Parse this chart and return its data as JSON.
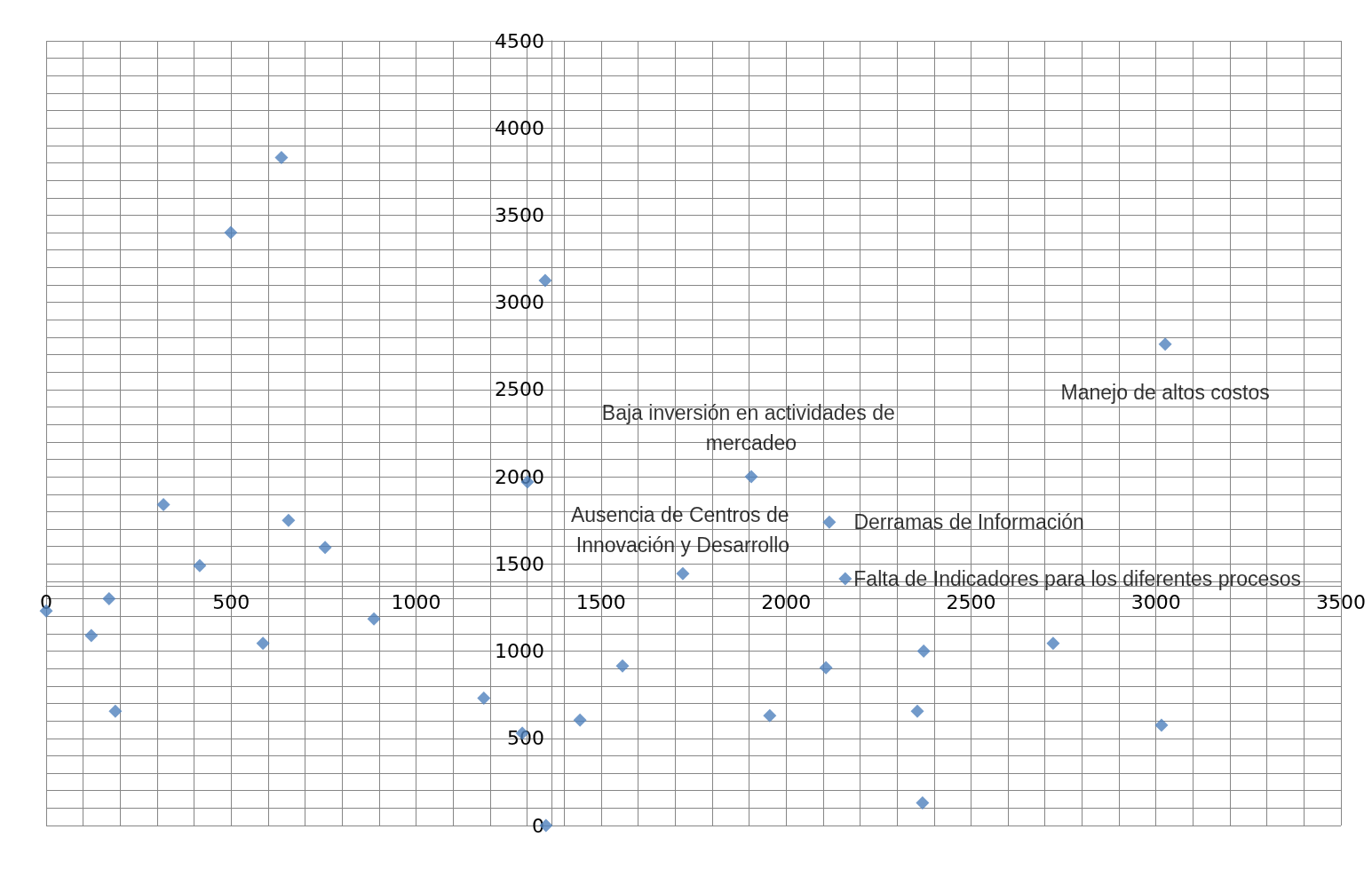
{
  "chart_data": {
    "type": "scatter",
    "marker": "diamond",
    "grid": true,
    "xlim": [
      0,
      3500
    ],
    "xticks": [
      0,
      500,
      1000,
      1500,
      2000,
      2500,
      3000,
      3500
    ],
    "ylim": [
      0,
      4500
    ],
    "yticks": [
      0,
      500,
      1000,
      1500,
      2000,
      2500,
      3000,
      3500,
      4000,
      4500
    ],
    "series": [
      {
        "color": "#4f81bd",
        "x": [
          0,
          122,
          170,
          187,
          317,
          415,
          499,
          586,
          636,
          655,
          754,
          886,
          1183,
          1287,
          1301,
          1349,
          1351,
          1443,
          1558,
          1721,
          1906,
          1956,
          2108,
          2117,
          2160,
          2355,
          2369,
          2372,
          2722,
          3015,
          3025
        ],
        "values": [
          1230,
          1090,
          1300,
          655,
          1840,
          1490,
          3400,
          1045,
          3830,
          1750,
          1595,
          1185,
          730,
          530,
          1970,
          3125,
          0,
          605,
          915,
          1445,
          2000,
          630,
          905,
          1740,
          1415,
          655,
          130,
          1000,
          1045,
          575,
          2760
        ]
      }
    ],
    "annotations": [
      {
        "text": "Baja inversión en actividades de mercadeo",
        "x": 1906,
        "y": 2000
      },
      {
        "text": "Manejo de altos costos",
        "x": 3025,
        "y": 2760
      },
      {
        "text": "Derramas de Información",
        "x": 2117,
        "y": 1740
      },
      {
        "text": "Falta de Indicadores para los diferentes procesos",
        "x": 2160,
        "y": 1415
      },
      {
        "text": "Ausencia de Centros de Innovación y Desarrollo",
        "x": 1721,
        "y": 1445
      }
    ]
  }
}
